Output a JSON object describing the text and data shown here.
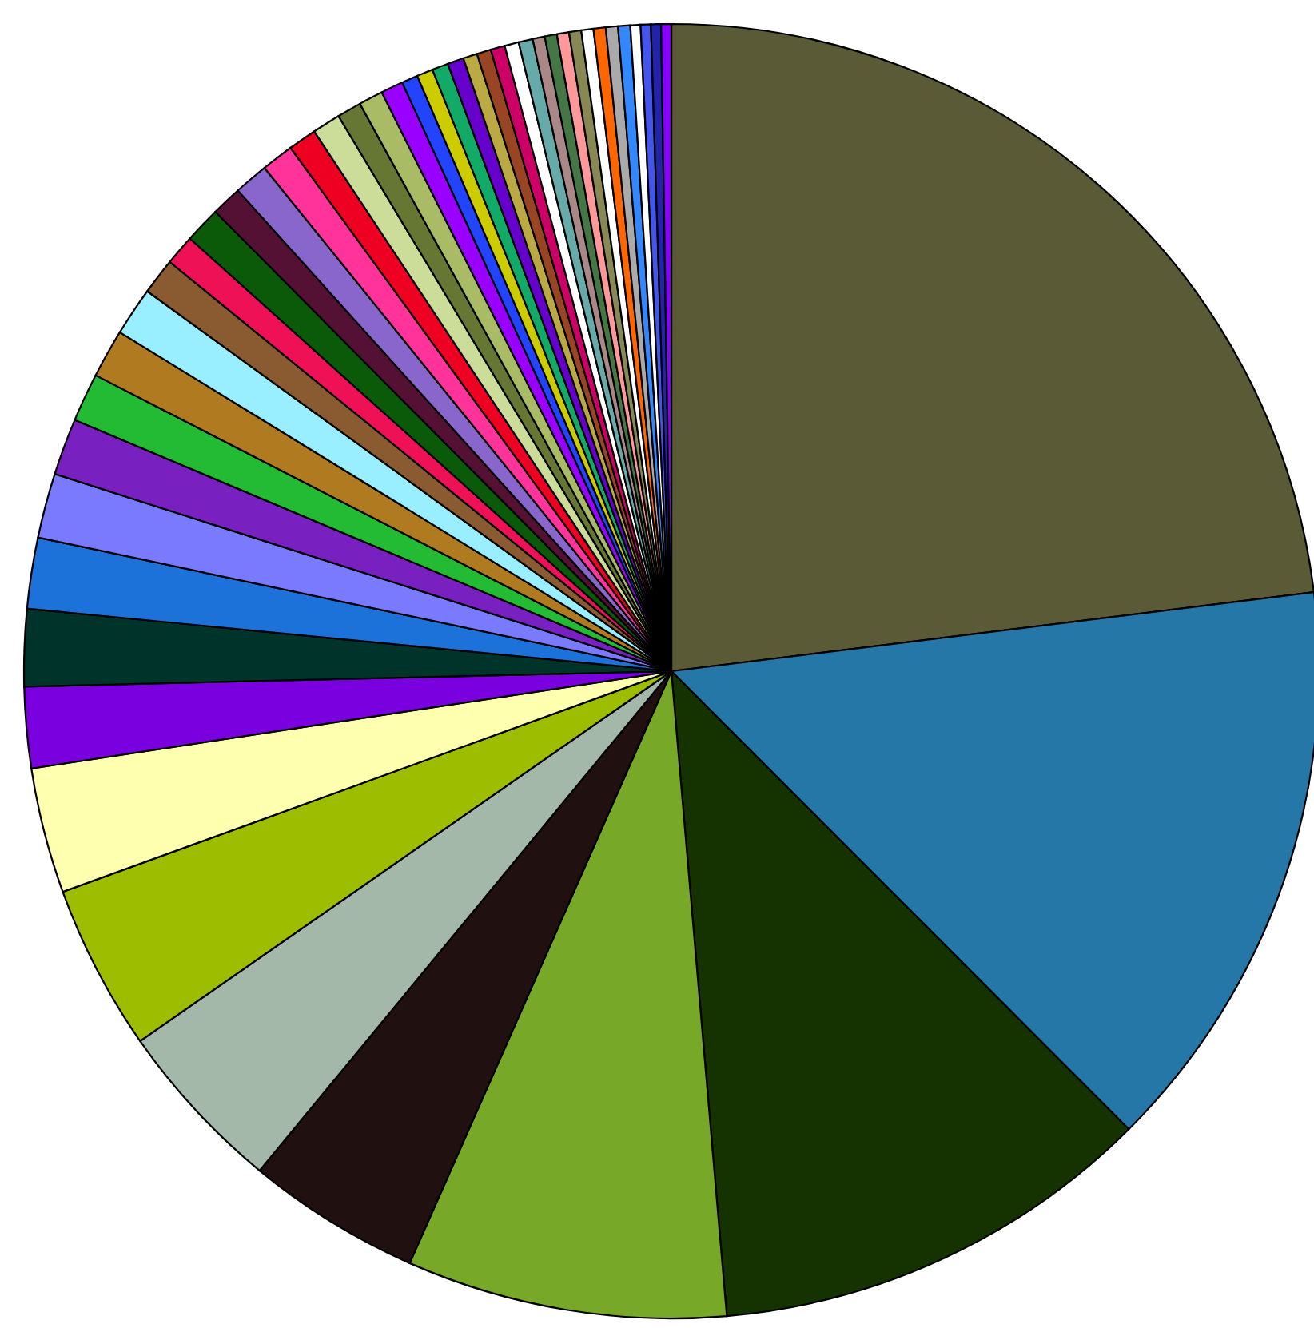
{
  "chart_data": {
    "type": "pie",
    "categories": [
      null,
      null,
      null,
      null,
      null,
      null,
      null,
      null,
      null,
      null,
      null,
      null,
      null,
      null,
      null,
      null,
      null,
      null,
      null,
      null,
      null,
      null,
      null,
      null,
      null,
      null,
      null,
      null,
      null,
      null,
      null,
      null,
      null,
      null,
      null,
      null,
      null,
      null,
      null,
      null,
      null,
      null,
      null,
      null,
      null,
      null,
      null,
      null
    ],
    "values": [
      22.8,
      14.3,
      11,
      7.9,
      4.3,
      4.3,
      4.1,
      3.1,
      2.0,
      1.9,
      1.75,
      1.6,
      1.4,
      1.2,
      1.2,
      1.2,
      0.9,
      0.75,
      0.9,
      0.75,
      0.85,
      0.8,
      0.7,
      0.7,
      0.6,
      0.6,
      0.55,
      0.4,
      0.4,
      0.4,
      0.4,
      0.35,
      0.35,
      0.35,
      0.35,
      0.35,
      0.3,
      0.3,
      0.3,
      0.3,
      0.3,
      0.3,
      0.3,
      0.3,
      0.25,
      0.25,
      0.25,
      0.25
    ],
    "colors": [
      "#5a5a36",
      "#2577a8",
      "#153300",
      "#78a828",
      "#211010",
      "#a3b8a8",
      "#9cbd00",
      "#ffffb0",
      "#7a00e0",
      "#00332a",
      "#1c72d8",
      "#7a7aff",
      "#7820c0",
      "#22bb33",
      "#b07a20",
      "#99eeff",
      "#8a5a30",
      "#ee1155",
      "#0a5a0a",
      "#551133",
      "#8866cc",
      "#ff3399",
      "#ee0022",
      "#ccdd99",
      "#667733",
      "#aabb66",
      "#9900ff",
      "#2244ff",
      "#cccc00",
      "#11aa66",
      "#6600cc",
      "#bbaa44",
      "#994422",
      "#cc0066",
      "#ffffff",
      "#66aaaa",
      "#aa8888",
      "#447744",
      "#ff9999",
      "#888855",
      "#ffffff",
      "#ff6600",
      "#aaaaaa",
      "#3388ff",
      "#ffffff",
      "#4455ee",
      "#2222aa",
      "#8800ff"
    ]
  }
}
